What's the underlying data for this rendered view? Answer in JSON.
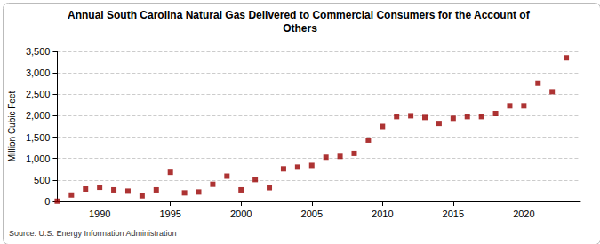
{
  "chart_data": {
    "type": "scatter",
    "title": "Annual South Carolina Natural Gas Delivered to Commercial Consumers for the Account of Others",
    "y_label": "Million Cubic Feet",
    "source": "Source: U.S. Energy Information Administration",
    "x": [
      1987,
      1988,
      1989,
      1990,
      1991,
      1992,
      1993,
      1994,
      1995,
      1996,
      1997,
      1998,
      1999,
      2000,
      2001,
      2002,
      2003,
      2004,
      2005,
      2006,
      2007,
      2008,
      2009,
      2010,
      2011,
      2012,
      2013,
      2014,
      2015,
      2016,
      2017,
      2018,
      2019,
      2020,
      2021,
      2022,
      2023
    ],
    "values": [
      5,
      150,
      290,
      330,
      270,
      240,
      130,
      270,
      680,
      200,
      220,
      400,
      590,
      270,
      510,
      320,
      760,
      800,
      840,
      1030,
      1050,
      1120,
      1430,
      1750,
      1980,
      2000,
      1960,
      1820,
      1940,
      1980,
      1980,
      2050,
      2230,
      2230,
      2760,
      2560,
      3350
    ],
    "color": "#990000",
    "marker": "square",
    "xlim": [
      1987,
      2024
    ],
    "xticks": [
      1990,
      1995,
      2000,
      2005,
      2010,
      2015,
      2020
    ],
    "ylim": [
      0,
      3500
    ],
    "yticks": [
      0,
      500,
      {
        "value": 1000,
        "label": "1,000"
      },
      {
        "value": 1500,
        "label": "1,500"
      },
      {
        "value": 2000,
        "label": "2,000"
      },
      {
        "value": 2500,
        "label": "2,500"
      },
      {
        "value": 3000,
        "label": "3,000"
      },
      {
        "value": 3500,
        "label": "3,500"
      }
    ],
    "grid": true
  }
}
